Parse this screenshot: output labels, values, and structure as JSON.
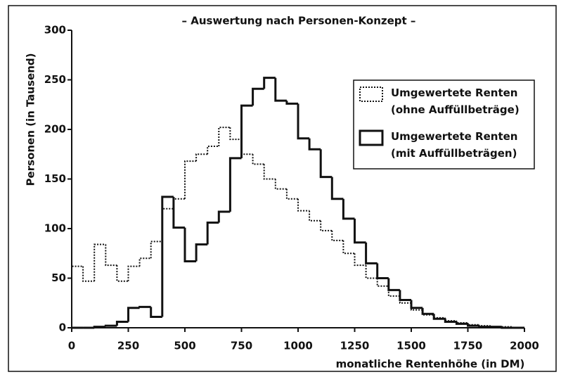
{
  "chart_data": {
    "type": "histogram",
    "title": "– Auswertung nach Personen-Konzept –",
    "x_label": "monatliche Rentenhöhe (in DM)",
    "y_label": "Personen (in Tausend)",
    "bins": [
      0,
      50,
      100,
      150,
      200,
      250,
      300,
      350,
      400,
      450,
      500,
      550,
      600,
      650,
      700,
      750,
      800,
      850,
      900,
      950,
      1000,
      1050,
      1100,
      1150,
      1200,
      1250,
      1300,
      1350,
      1400,
      1450,
      1500,
      1550,
      1600,
      1650,
      1700,
      1750,
      1800,
      1850,
      1900,
      1950,
      2000
    ],
    "series": [
      {
        "name": "Umgewertete Renten\n(ohne Auffüllbeträge)",
        "color": "#111111",
        "style": "dotted",
        "values": [
          62,
          47,
          84,
          63,
          47,
          62,
          70,
          87,
          120,
          130,
          168,
          175,
          183,
          202,
          190,
          175,
          165,
          150,
          140,
          130,
          118,
          108,
          98,
          88,
          75,
          63,
          50,
          42,
          32,
          25,
          18,
          13,
          10,
          7,
          5,
          3,
          2,
          1,
          1,
          0
        ]
      },
      {
        "name": "Umgewertete Renten\n(mit Auffüllbeträgen)",
        "color": "#111111",
        "style": "solid",
        "values": [
          0,
          0,
          1,
          2,
          6,
          20,
          21,
          11,
          132,
          101,
          67,
          84,
          106,
          117,
          171,
          224,
          241,
          252,
          229,
          226,
          191,
          180,
          152,
          130,
          110,
          86,
          65,
          50,
          38,
          28,
          20,
          14,
          9,
          6,
          4,
          2,
          1,
          1,
          0,
          0
        ]
      }
    ],
    "xlim": [
      0,
      2000
    ],
    "xticks": [
      0,
      250,
      500,
      750,
      1000,
      1250,
      1500,
      1750,
      2000
    ],
    "ylim": [
      0,
      300
    ],
    "yticks": [
      0,
      50,
      100,
      150,
      200,
      250,
      300
    ],
    "legend": "upper right"
  }
}
